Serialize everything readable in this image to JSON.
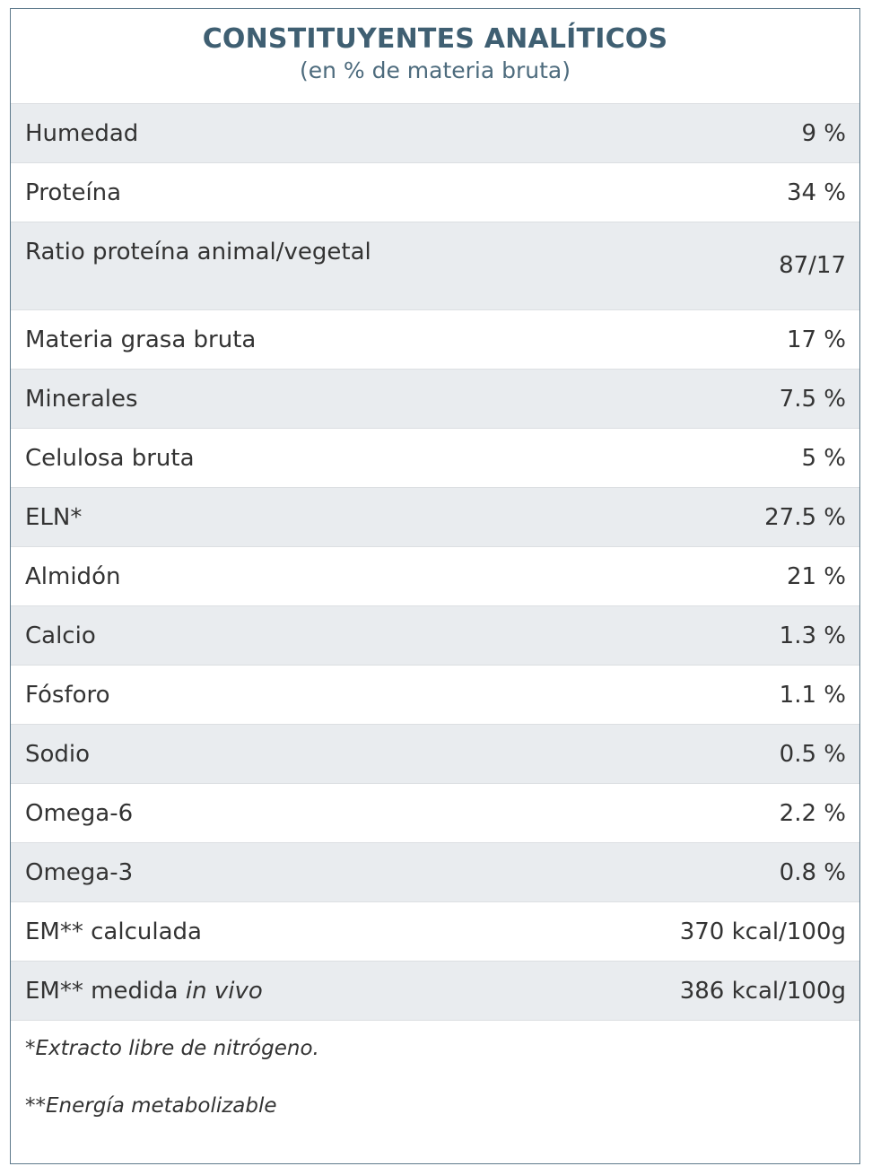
{
  "header": {
    "title": "CONSTITUYENTES ANALÍTICOS",
    "subtitle": "(en % de materia bruta)"
  },
  "rows": [
    {
      "label": "Humedad",
      "value": "9 %"
    },
    {
      "label": "Proteína",
      "value": "34 %"
    },
    {
      "label": "Ratio proteína animal/vegetal",
      "value": "87/17"
    },
    {
      "label": "Materia grasa bruta",
      "value": "17 %"
    },
    {
      "label": "Minerales",
      "value": "7.5 %"
    },
    {
      "label": "Celulosa bruta",
      "value": "5 %"
    },
    {
      "label": "ELN*",
      "value": "27.5 %"
    },
    {
      "label": "Almidón",
      "value": "21 %"
    },
    {
      "label": "Calcio",
      "value": "1.3 %"
    },
    {
      "label": "Fósforo",
      "value": "1.1 %"
    },
    {
      "label": "Sodio",
      "value": "0.5 %"
    },
    {
      "label": "Omega-6",
      "value": "2.2 %"
    },
    {
      "label": "Omega-3",
      "value": "0.8 %"
    },
    {
      "label": "EM** calculada",
      "value": "370 kcal/100g"
    },
    {
      "label": "EM** medida ",
      "label_italic": "in vivo",
      "value": "386 kcal/100g"
    }
  ],
  "notes": [
    "*Extracto libre de nitrógeno.",
    "**Energía metabolizable"
  ],
  "colors": {
    "title": "#3f5f72",
    "row_shade": "#e9ecef",
    "border": "#5e7a8c"
  }
}
